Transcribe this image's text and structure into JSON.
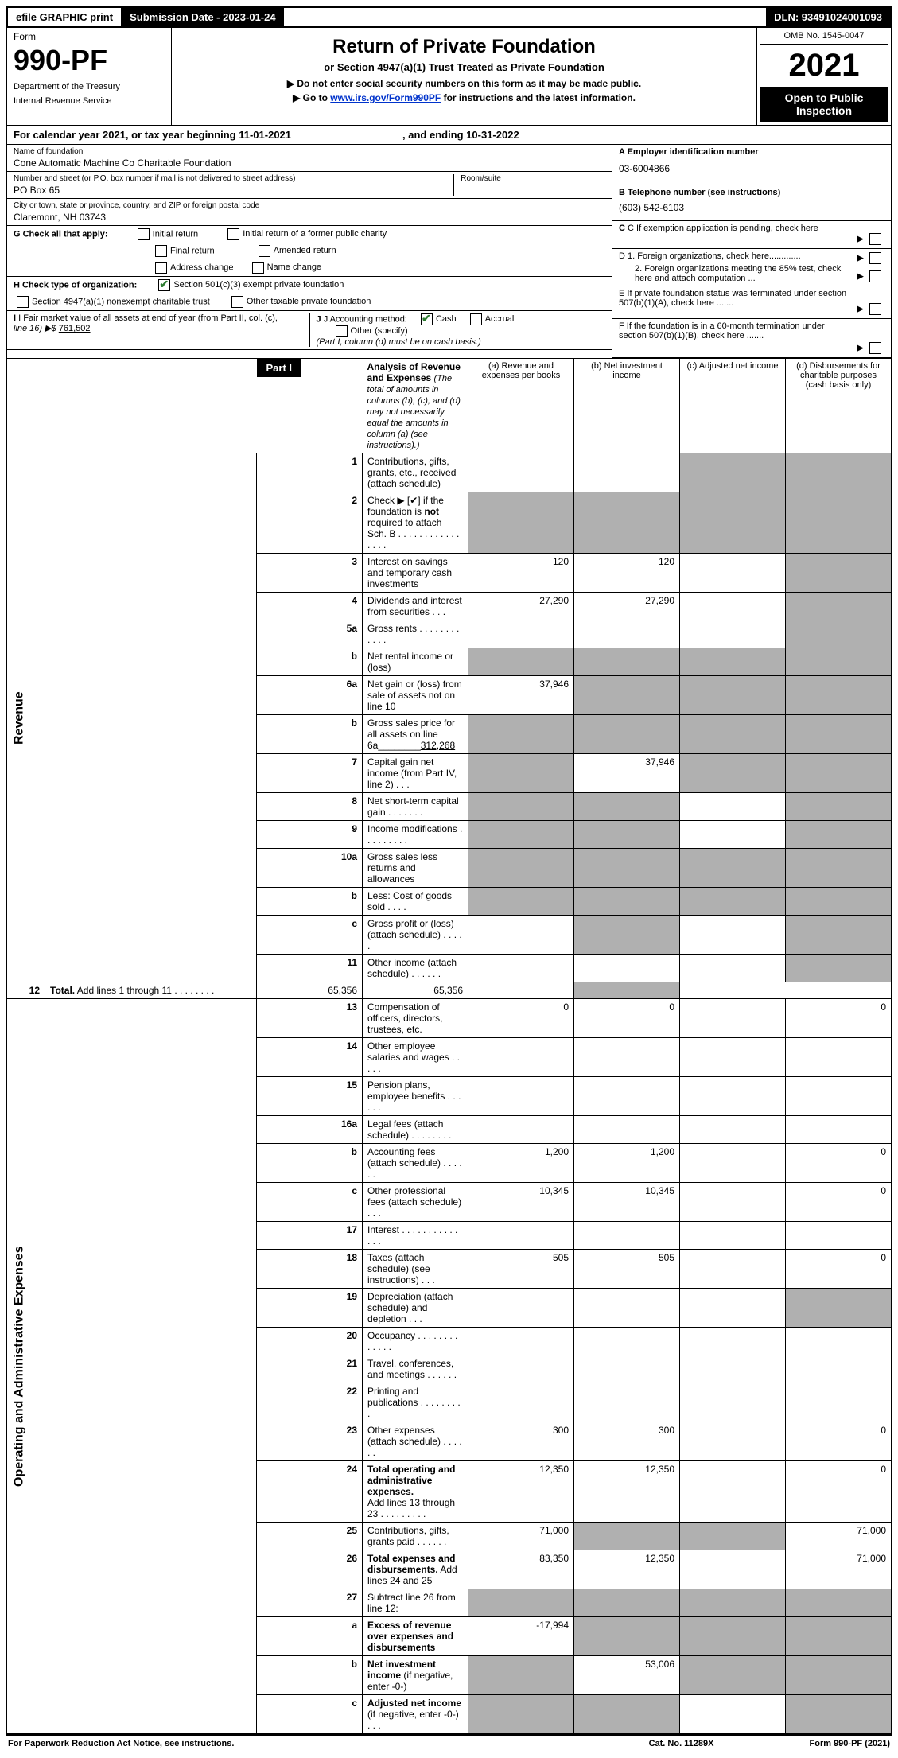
{
  "header": {
    "efile": "efile GRAPHIC print",
    "submission": "Submission Date - 2023-01-24",
    "dln": "DLN: 93491024001093"
  },
  "top": {
    "form_word": "Form",
    "form_num": "990-PF",
    "dept1": "Department of the Treasury",
    "dept2": "Internal Revenue Service",
    "title": "Return of Private Foundation",
    "subtitle": "or Section 4947(a)(1) Trust Treated as Private Foundation",
    "note1": "▶ Do not enter social security numbers on this form as it may be made public.",
    "note2_pre": "▶ Go to ",
    "note2_link": "www.irs.gov/Form990PF",
    "note2_post": " for instructions and the latest information.",
    "omb": "OMB No. 1545-0047",
    "year": "2021",
    "open": "Open to Public Inspection"
  },
  "calyear": {
    "pre": "For calendar year 2021, or tax year beginning 11-01-2021",
    "mid": ", and ending 10-31-2022"
  },
  "info": {
    "name_label": "Name of foundation",
    "name": "Cone Automatic Machine Co Charitable Foundation",
    "addr_label": "Number and street (or P.O. box number if mail is not delivered to street address)",
    "addr": "PO Box 65",
    "room_label": "Room/suite",
    "room": "",
    "city_label": "City or town, state or province, country, and ZIP or foreign postal code",
    "city": "Claremont, NH  03743",
    "g_label": "G Check all that apply:",
    "g_initial": "Initial return",
    "g_initial_former": "Initial return of a former public charity",
    "g_final": "Final return",
    "g_amended": "Amended return",
    "g_address": "Address change",
    "g_namechg": "Name change",
    "h_label": "H Check type of organization:",
    "h_501c3": "Section 501(c)(3) exempt private foundation",
    "h_4947": "Section 4947(a)(1) nonexempt charitable trust",
    "h_other": "Other taxable private foundation",
    "i_label": "I Fair market value of all assets at end of year (from Part II, col. (c),",
    "i_line": "line 16) ▶$  ",
    "i_val": "761,502",
    "j_label": "J Accounting method:",
    "j_cash": "Cash",
    "j_accrual": "Accrual",
    "j_other": "Other (specify)",
    "j_note": "(Part I, column (d) must be on cash basis.)",
    "a_label": "A Employer identification number",
    "a_val": "03-6004866",
    "b_label": "B Telephone number (see instructions)",
    "b_val": "(603) 542-6103",
    "c_label": "C If exemption application is pending, check here",
    "d1_label": "D 1. Foreign organizations, check here.............",
    "d2_label": "2. Foreign organizations meeting the 85% test, check here and attach computation ...",
    "e_label": "E  If private foundation status was terminated under section 507(b)(1)(A), check here .......",
    "f_label": "F  If the foundation is in a 60-month termination under section 507(b)(1)(B), check here .......",
    "arrow": "▶"
  },
  "part1": {
    "label": "Part I",
    "title": "Analysis of Revenue and Expenses",
    "title_note": " (The total of amounts in columns (b), (c), and (d) may not necessarily equal the amounts in column (a) (see instructions).)",
    "col_a": "(a)   Revenue and expenses per books",
    "col_b": "(b)   Net investment income",
    "col_c": "(c)   Adjusted net income",
    "col_d": "(d)  Disbursements for charitable purposes (cash basis only)"
  },
  "vert": {
    "revenue": "Revenue",
    "expenses": "Operating and Administrative Expenses"
  },
  "rows": [
    {
      "n": "1",
      "desc": "Contributions, gifts, grants, etc., received (attach schedule)",
      "a": "",
      "b": "",
      "c_shade": true,
      "d_shade": true
    },
    {
      "n": "2",
      "desc": "Check ▶ [✔] if the foundation is <b>not</b> required to attach Sch. B     .   .   .   .   .   .   .   .   .   .   .   .   .   .   .   .",
      "a_shade": true,
      "b_shade": true,
      "c_shade": true,
      "d_shade": true
    },
    {
      "n": "3",
      "desc": "Interest on savings and temporary cash investments",
      "a": "120",
      "b": "120",
      "c": "",
      "d_shade": true
    },
    {
      "n": "4",
      "desc": "Dividends and interest from securities     .   .   .",
      "a": "27,290",
      "b": "27,290",
      "c": "",
      "d_shade": true
    },
    {
      "n": "5a",
      "desc": "Gross rents     .   .   .   .   .   .   .   .   .   .   .   .",
      "a": "",
      "b": "",
      "c": "",
      "d_shade": true
    },
    {
      "n": "b",
      "desc": "Net rental income or (loss)  ",
      "a_shade": true,
      "b_shade": true,
      "c_shade": true,
      "d_shade": true
    },
    {
      "n": "6a",
      "desc": "Net gain or (loss) from sale of assets not on line 10",
      "a": "37,946",
      "b_shade": true,
      "c_shade": true,
      "d_shade": true
    },
    {
      "n": "b",
      "desc": "Gross sales price for all assets on line 6a________<u>312,268</u>",
      "a_shade": true,
      "b_shade": true,
      "c_shade": true,
      "d_shade": true
    },
    {
      "n": "7",
      "desc": "Capital gain net income (from Part IV, line 2)   .   .   .",
      "a_shade": true,
      "b": "37,946",
      "c_shade": true,
      "d_shade": true
    },
    {
      "n": "8",
      "desc": "Net short-term capital gain   .   .   .   .   .   .   .",
      "a_shade": true,
      "b_shade": true,
      "c": "",
      "d_shade": true
    },
    {
      "n": "9",
      "desc": "Income modifications   .   .   .   .   .   .   .   .   .",
      "a_shade": true,
      "b_shade": true,
      "c": "",
      "d_shade": true
    },
    {
      "n": "10a",
      "desc": "Gross sales less returns and allowances",
      "a_shade": true,
      "b_shade": true,
      "c_shade": true,
      "d_shade": true
    },
    {
      "n": "b",
      "desc": "Less: Cost of goods sold    .   .   .   .",
      "a_shade": true,
      "b_shade": true,
      "c_shade": true,
      "d_shade": true
    },
    {
      "n": "c",
      "desc": "Gross profit or (loss) (attach schedule)    .   .   .   .   .",
      "a": "",
      "b_shade": true,
      "c": "",
      "d_shade": true
    },
    {
      "n": "11",
      "desc": "Other income (attach schedule)    .   .   .   .   .   .",
      "a": "",
      "b": "",
      "c": "",
      "d_shade": true
    },
    {
      "n": "12",
      "desc": "<b>Total.</b> Add lines 1 through 11    .   .   .   .   .   .   .   .",
      "a": "65,356",
      "b": "65,356",
      "c": "",
      "d_shade": true
    },
    {
      "n": "13",
      "desc": "Compensation of officers, directors, trustees, etc.",
      "a": "0",
      "b": "0",
      "c": "",
      "d": "0"
    },
    {
      "n": "14",
      "desc": "Other employee salaries and wages    .   .   .   .   .",
      "a": "",
      "b": "",
      "c": "",
      "d": ""
    },
    {
      "n": "15",
      "desc": "Pension plans, employee benefits   .   .   .   .   .   .",
      "a": "",
      "b": "",
      "c": "",
      "d": ""
    },
    {
      "n": "16a",
      "desc": "Legal fees (attach schedule)  .   .   .   .   .   .   .   .",
      "a": "",
      "b": "",
      "c": "",
      "d": ""
    },
    {
      "n": "b",
      "desc": "Accounting fees (attach schedule)  .   .   .   .   .   .",
      "a": "1,200",
      "b": "1,200",
      "c": "",
      "d": "0"
    },
    {
      "n": "c",
      "desc": "Other professional fees (attach schedule)    .   .   .",
      "a": "10,345",
      "b": "10,345",
      "c": "",
      "d": "0"
    },
    {
      "n": "17",
      "desc": "Interest   .   .   .   .   .   .   .   .   .   .   .   .   .   .",
      "a": "",
      "b": "",
      "c": "",
      "d": ""
    },
    {
      "n": "18",
      "desc": "Taxes (attach schedule) (see instructions)     .   .   .",
      "a": "505",
      "b": "505",
      "c": "",
      "d": "0"
    },
    {
      "n": "19",
      "desc": "Depreciation (attach schedule) and depletion    .   .   .",
      "a": "",
      "b": "",
      "c": "",
      "d_shade": true
    },
    {
      "n": "20",
      "desc": "Occupancy  .   .   .   .   .   .   .   .   .   .   .   .   .",
      "a": "",
      "b": "",
      "c": "",
      "d": ""
    },
    {
      "n": "21",
      "desc": "Travel, conferences, and meetings  .   .   .   .   .   .",
      "a": "",
      "b": "",
      "c": "",
      "d": ""
    },
    {
      "n": "22",
      "desc": "Printing and publications  .   .   .   .   .   .   .   .   .",
      "a": "",
      "b": "",
      "c": "",
      "d": ""
    },
    {
      "n": "23",
      "desc": "Other expenses (attach schedule)  .   .   .   .   .   .",
      "a": "300",
      "b": "300",
      "c": "",
      "d": "0"
    },
    {
      "n": "24",
      "desc": "<b>Total operating and administrative expenses.</b><br>Add lines 13 through 23   .   .   .   .   .   .   .   .   .",
      "a": "12,350",
      "b": "12,350",
      "c": "",
      "d": "0"
    },
    {
      "n": "25",
      "desc": "Contributions, gifts, grants paid     .   .   .   .   .   .",
      "a": "71,000",
      "b_shade": true,
      "c_shade": true,
      "d": "71,000"
    },
    {
      "n": "26",
      "desc": "<b>Total expenses and disbursements.</b> Add lines 24 and 25",
      "a": "83,350",
      "b": "12,350",
      "c": "",
      "d": "71,000"
    },
    {
      "n": "27",
      "desc": "Subtract line 26 from line 12:",
      "a_shade": true,
      "b_shade": true,
      "c_shade": true,
      "d_shade": true
    },
    {
      "n": "a",
      "desc": "<b>Excess of revenue over expenses and disbursements</b>",
      "a": "-17,994",
      "b_shade": true,
      "c_shade": true,
      "d_shade": true
    },
    {
      "n": "b",
      "desc": "<b>Net investment income</b> (if negative, enter -0-)",
      "a_shade": true,
      "b": "53,006",
      "c_shade": true,
      "d_shade": true
    },
    {
      "n": "c",
      "desc": "<b>Adjusted net income</b> (if negative, enter -0-)   .   .   .",
      "a_shade": true,
      "b_shade": true,
      "c": "",
      "d_shade": true
    }
  ],
  "footer": {
    "left": "For Paperwork Reduction Act Notice, see instructions.",
    "mid": "Cat. No. 11289X",
    "right": "Form 990-PF (2021)"
  }
}
